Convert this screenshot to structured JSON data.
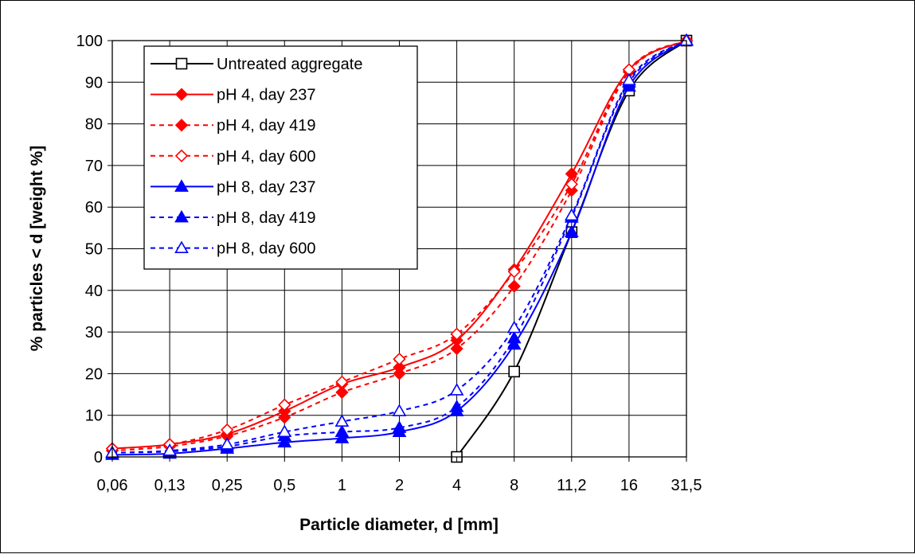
{
  "chart_data": {
    "type": "line",
    "xlabel": "Particle diameter, d [mm]",
    "ylabel": "% particles < d [weight %]",
    "categories": [
      "0,06",
      "0,13",
      "0,25",
      "0,5",
      "1",
      "2",
      "4",
      "8",
      "11,2",
      "16",
      "31,5"
    ],
    "y_ticks": [
      "0",
      "10",
      "20",
      "30",
      "40",
      "50",
      "60",
      "70",
      "80",
      "90",
      "100"
    ],
    "ylim": [
      0,
      100
    ],
    "grid": true,
    "legend_position": "top-left",
    "colors": {
      "black": "#000000",
      "red": "#ff0000",
      "blue": "#0000ff"
    },
    "series": [
      {
        "name": "Untreated aggregate",
        "color": "#000000",
        "dash": "solid",
        "marker": "square-open",
        "x": [
          "4",
          "8",
          "11,2",
          "16",
          "31,5"
        ],
        "values": [
          0,
          20.5,
          54,
          88,
          100
        ]
      },
      {
        "name": "pH 4, day 237",
        "color": "#ff0000",
        "dash": "solid",
        "marker": "diamond-filled",
        "x": [
          "0,06",
          "0,13",
          "0,25",
          "0,5",
          "1",
          "2",
          "4",
          "8",
          "11,2",
          "16",
          "31,5"
        ],
        "values": [
          2,
          3,
          5.5,
          11,
          17.5,
          21.5,
          28,
          45,
          68,
          93,
          100
        ]
      },
      {
        "name": "pH 4, day 419",
        "color": "#ff0000",
        "dash": "dashed",
        "marker": "diamond-filled",
        "x": [
          "0,06",
          "0,13",
          "0,25",
          "0,5",
          "1",
          "2",
          "4",
          "8",
          "11,2",
          "16",
          "31,5"
        ],
        "values": [
          1.5,
          2.5,
          5,
          9.5,
          15.5,
          20,
          26,
          41,
          64,
          92.5,
          100
        ]
      },
      {
        "name": "pH 4, day 600",
        "color": "#ff0000",
        "dash": "dashed",
        "marker": "diamond-open",
        "x": [
          "0,06",
          "0,13",
          "0,25",
          "0,5",
          "1",
          "2",
          "4",
          "8",
          "11,2",
          "16",
          "31,5"
        ],
        "values": [
          2,
          3,
          6.5,
          12.5,
          18,
          23.5,
          29.5,
          44.5,
          65.5,
          93,
          100
        ]
      },
      {
        "name": "pH 8, day 237",
        "color": "#0000ff",
        "dash": "solid",
        "marker": "triangle-filled",
        "x": [
          "0,06",
          "0,13",
          "0,25",
          "0,5",
          "1",
          "2",
          "4",
          "8",
          "11,2",
          "16",
          "31,5"
        ],
        "values": [
          0.5,
          0.8,
          2,
          3.5,
          4.5,
          6,
          11,
          27,
          54,
          89,
          100
        ]
      },
      {
        "name": "pH 8, day 419",
        "color": "#0000ff",
        "dash": "dashed",
        "marker": "triangle-filled",
        "x": [
          "0,06",
          "0,13",
          "0,25",
          "0,5",
          "1",
          "2",
          "4",
          "8",
          "11,2",
          "16",
          "31,5"
        ],
        "values": [
          1,
          1.3,
          2.5,
          5,
          6,
          7,
          12,
          28.5,
          57.5,
          90,
          100
        ]
      },
      {
        "name": "pH 8, day 600",
        "color": "#0000ff",
        "dash": "dashed",
        "marker": "triangle-open",
        "x": [
          "0,06",
          "0,13",
          "0,25",
          "0,5",
          "1",
          "2",
          "4",
          "8",
          "11,2",
          "16",
          "31,5"
        ],
        "values": [
          1,
          1.5,
          3,
          6,
          8.5,
          11,
          16,
          31,
          58,
          90.5,
          100
        ]
      }
    ]
  }
}
